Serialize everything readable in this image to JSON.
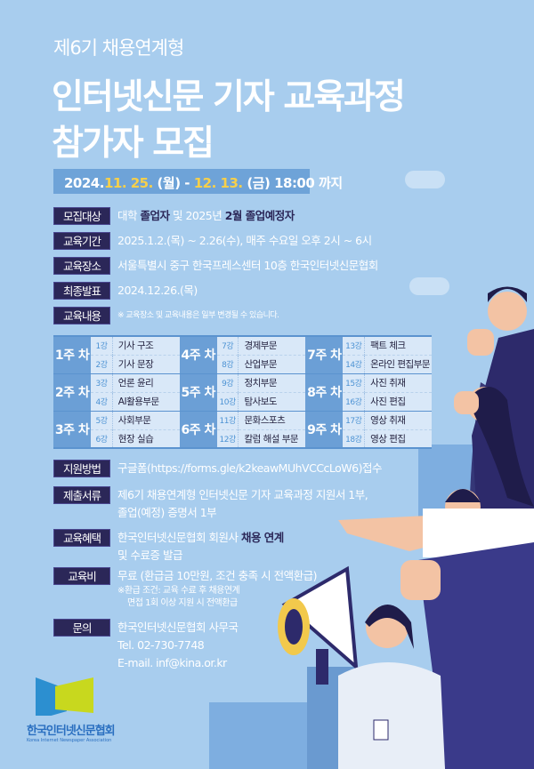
{
  "title": {
    "line1": "제6기 채용연계형",
    "line2": "인터넷신문 기자 교육과정",
    "line3": "참가자 모집"
  },
  "deadline": {
    "start_year": "2024.",
    "start_date": "11. 25.",
    "start_day": " (월) - ",
    "end_date": "12. 13.",
    "end_rest": " (금) 18:00 까지"
  },
  "info": [
    {
      "label": "모집대상",
      "parts": [
        {
          "t": "대학 ",
          "b": false
        },
        {
          "t": "졸업자",
          "b": true
        },
        {
          "t": " 및 2025년 ",
          "b": false
        },
        {
          "t": "2월 졸업예정자",
          "b": true
        }
      ]
    },
    {
      "label": "교육기간",
      "value": "2025.1.2.(목) ~ 2.26(수), 매주 수요일 오후 2시 ~ 6시"
    },
    {
      "label": "교육장소",
      "value": "서울특별시 중구 한국프레스센터 10층 한국인터넷신문협회"
    },
    {
      "label": "최종발표",
      "value": "2024.12.26.(목)"
    },
    {
      "label": "교육내용",
      "value": "※ 교육장소 및 교육내용은 일부 변경될 수 있습니다."
    }
  ],
  "curriculum": [
    [
      {
        "week": "1주 차",
        "lessons": [
          [
            "1강",
            "기사 구조"
          ],
          [
            "2강",
            "기사 문장"
          ]
        ]
      },
      {
        "week": "4주 차",
        "lessons": [
          [
            "7강",
            "경제부문"
          ],
          [
            "8강",
            "산업부문"
          ]
        ]
      },
      {
        "week": "7주 차",
        "lessons": [
          [
            "13강",
            "팩트 체크"
          ],
          [
            "14강",
            "온라인 편집부문"
          ]
        ]
      }
    ],
    [
      {
        "week": "2주 차",
        "lessons": [
          [
            "3강",
            "언론 윤리"
          ],
          [
            "4강",
            "AI활용부문"
          ]
        ]
      },
      {
        "week": "5주 차",
        "lessons": [
          [
            "9강",
            "정치부문"
          ],
          [
            "10강",
            "탐사보도"
          ]
        ]
      },
      {
        "week": "8주 차",
        "lessons": [
          [
            "15강",
            "사진 취재"
          ],
          [
            "16강",
            "사진 편집"
          ]
        ]
      }
    ],
    [
      {
        "week": "3주 차",
        "lessons": [
          [
            "5강",
            "사회부문"
          ],
          [
            "6강",
            "현장 실습"
          ]
        ]
      },
      {
        "week": "6주 차",
        "lessons": [
          [
            "11강",
            "문화스포츠"
          ],
          [
            "12강",
            "칼럼 해설 부문"
          ]
        ]
      },
      {
        "week": "9주 차",
        "lessons": [
          [
            "17강",
            "영상 취재"
          ],
          [
            "18강",
            "영상 편집"
          ]
        ]
      }
    ]
  ],
  "details": {
    "apply": {
      "label": "지원방법",
      "value": "구글폼(https://forms.gle/k2keawMUhVCCcLoW6)접수"
    },
    "docs": {
      "label": "제출서류",
      "line1": "제6기 채용연계형 인터넷신문 기자 교육과정 지원서 1부,",
      "line2": "졸업(예정) 증명서 1부"
    },
    "benefit": {
      "label": "교육혜택",
      "line1a": "한국인터넷신문협회 회원사 ",
      "line1b": "채용 연계",
      "line2": "및 수료증 발급"
    },
    "fee": {
      "label": "교육비",
      "value": "무료 (환급금 10만원, 조건 충족 시 전액환급)",
      "note1": "※환급 조건: 교육 수료 후 채용연계",
      "note2": "면접 1회 이상 지원 시 전액환급"
    },
    "contact": {
      "label": "문의",
      "org": "한국인터넷신문협회 사무국",
      "tel": "Tel. 02-730-7748",
      "email": "E-mail. inf@kina.or.kr"
    }
  },
  "logo": {
    "name": "한국인터넷신문협회",
    "sub": "Korea Internet Newspaper Association"
  },
  "colors": {
    "background": "#a8cdee",
    "label": "#2b2758",
    "accent_yellow": "#f7d04a",
    "table_week": "#6b9fd6"
  }
}
